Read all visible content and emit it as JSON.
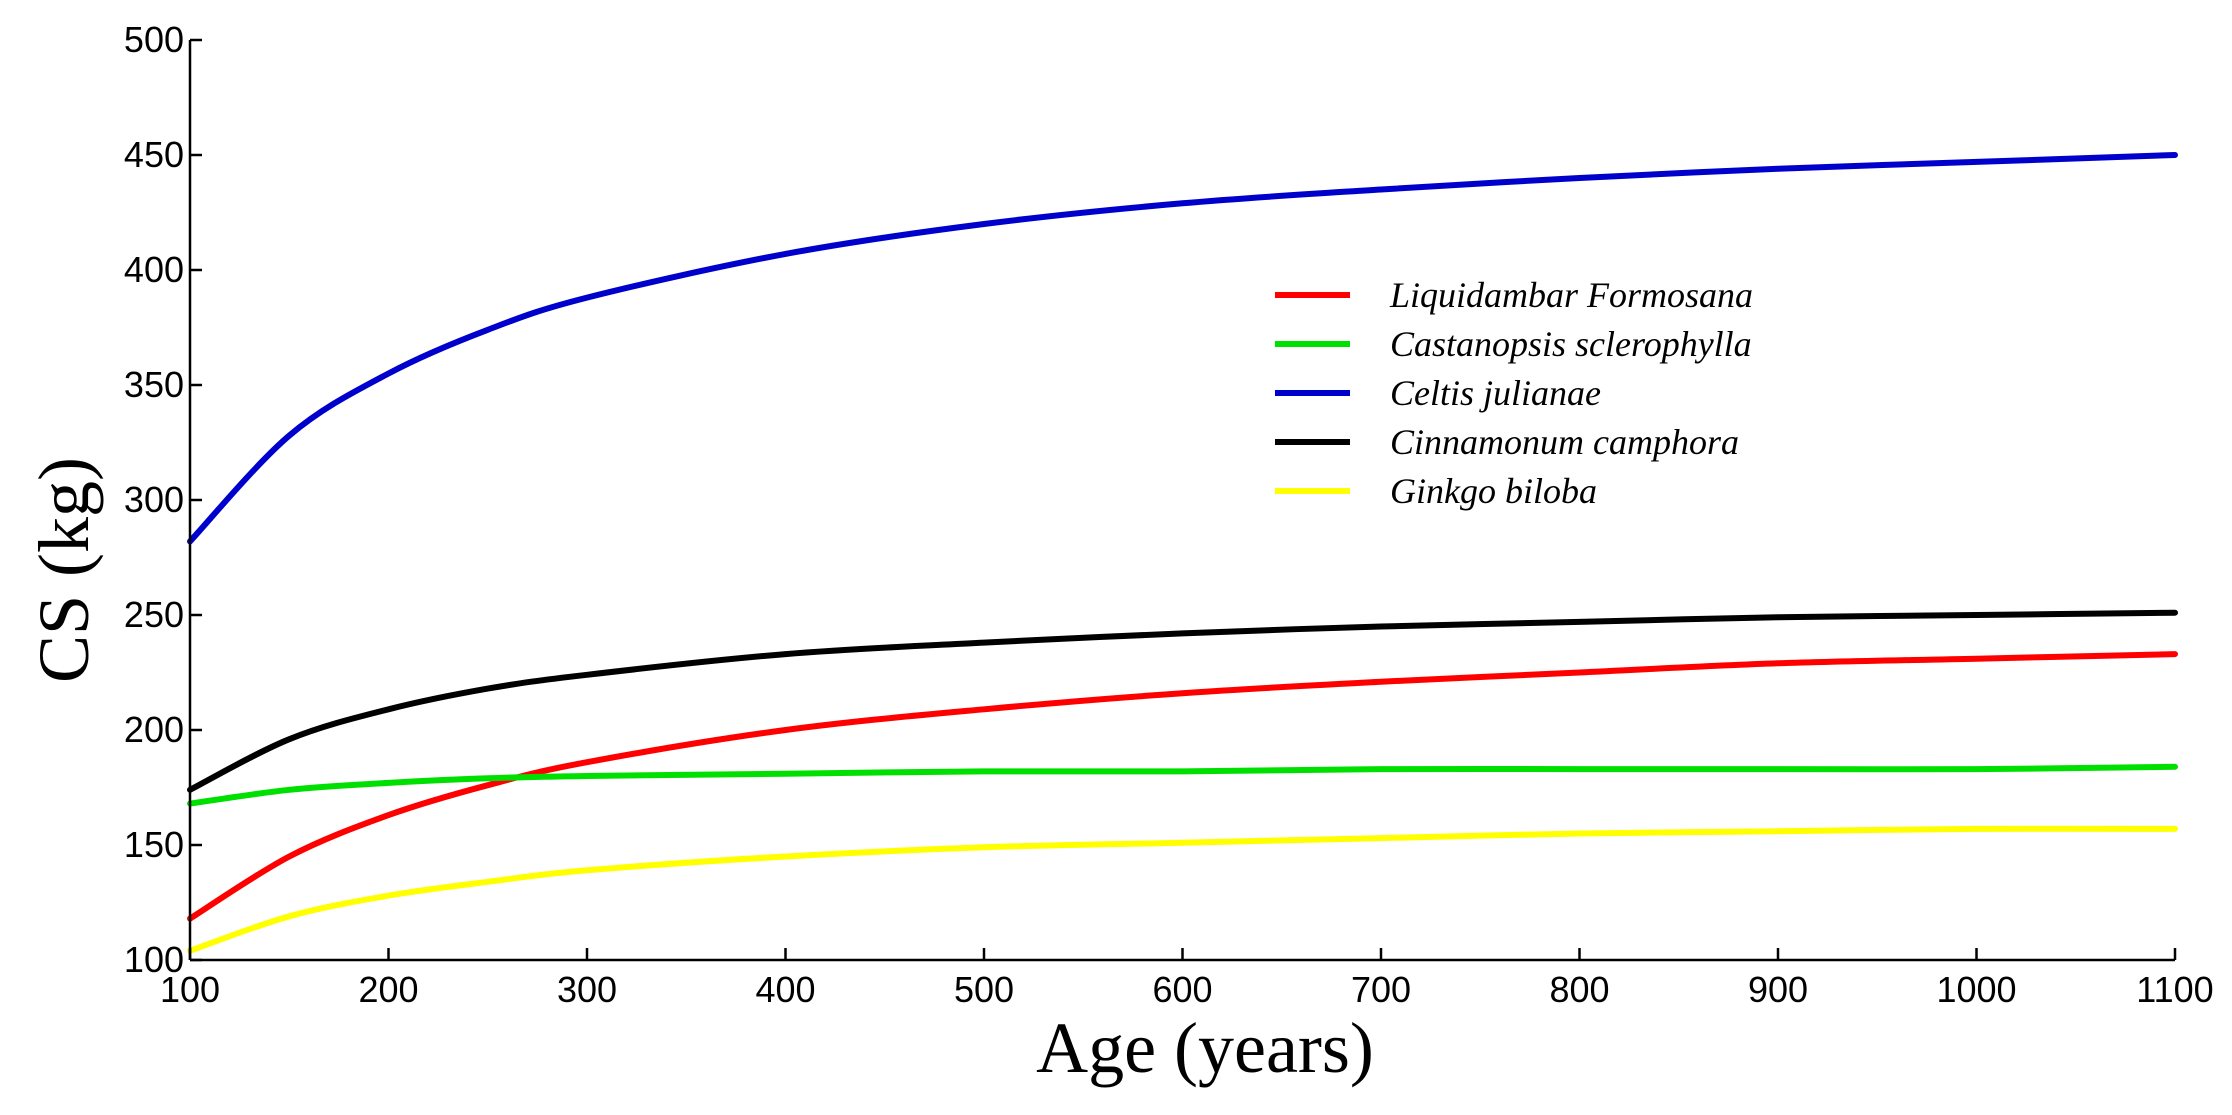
{
  "chart_data": {
    "type": "line",
    "title": "",
    "xlabel": "Age (years)",
    "ylabel": "CS (kg)",
    "xlim": [
      100,
      1100
    ],
    "ylim": [
      100,
      500
    ],
    "xticks": [
      100,
      200,
      300,
      400,
      500,
      600,
      700,
      800,
      900,
      1000,
      1100
    ],
    "yticks": [
      100,
      150,
      200,
      250,
      300,
      350,
      400,
      450,
      500
    ],
    "xtick_labels": [
      "100",
      "200",
      "300",
      "400",
      "500",
      "600",
      "700",
      "800",
      "900",
      "1000",
      "1100"
    ],
    "ytick_labels": [
      "100",
      "150",
      "200",
      "250",
      "300",
      "350",
      "400",
      "450",
      "500"
    ],
    "grid": false,
    "legend_position": "center-right",
    "x": [
      100,
      150,
      200,
      250,
      300,
      400,
      500,
      600,
      700,
      800,
      900,
      1000,
      1100
    ],
    "series": [
      {
        "name": "Liquidambar Formosana",
        "color": "#ff0000",
        "values": [
          118,
          145,
          163,
          176,
          186,
          200,
          209,
          216,
          221,
          225,
          229,
          231,
          233
        ]
      },
      {
        "name": "Castanopsis sclerophylla",
        "color": "#00e000",
        "values": [
          168,
          174,
          177,
          179,
          180,
          181,
          182,
          182,
          183,
          183,
          183,
          183,
          184
        ]
      },
      {
        "name": "Celtis julianae",
        "color": "#0000cc",
        "values": [
          282,
          328,
          355,
          374,
          388,
          407,
          420,
          429,
          435,
          440,
          444,
          447,
          450
        ]
      },
      {
        "name": "Cinnamonum camphora",
        "color": "#000000",
        "values": [
          174,
          196,
          209,
          218,
          224,
          233,
          238,
          242,
          245,
          247,
          249,
          250,
          251
        ]
      },
      {
        "name": "Ginkgo biloba",
        "color": "#ffff00",
        "values": [
          104,
          119,
          128,
          134,
          139,
          145,
          149,
          151,
          153,
          155,
          156,
          157,
          157
        ]
      }
    ]
  }
}
